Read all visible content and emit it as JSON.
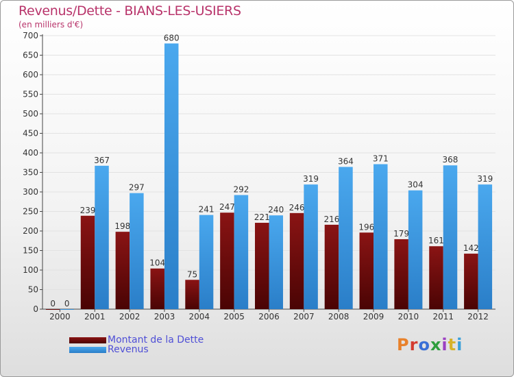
{
  "chart_data": {
    "type": "bar",
    "title": "Revenus/Dette - BIANS-LES-USIERS",
    "subtitle": "(en milliers d'€)",
    "categories": [
      "2000",
      "2001",
      "2002",
      "2003",
      "2004",
      "2005",
      "2006",
      "2007",
      "2008",
      "2009",
      "2010",
      "2011",
      "2012"
    ],
    "series": [
      {
        "name": "Montant de la Dette",
        "color": "#7a0a0a",
        "values": [
          0,
          239,
          198,
          104,
          75,
          247,
          221,
          246,
          216,
          196,
          179,
          161,
          142
        ]
      },
      {
        "name": "Revenus",
        "color": "#3f9de6",
        "values": [
          0,
          367,
          297,
          680,
          241,
          292,
          240,
          319,
          364,
          371,
          304,
          368,
          319
        ]
      }
    ],
    "ylim": [
      0,
      700
    ],
    "yticks": [
      0,
      50,
      100,
      150,
      200,
      250,
      300,
      350,
      400,
      450,
      500,
      550,
      600,
      650,
      700
    ],
    "grid": true,
    "legend_position": "bottom-left"
  },
  "logo": {
    "text": "Proxiti",
    "colors": [
      "#e8812b",
      "#d43b2f",
      "#3a6fd6",
      "#2e9e3e",
      "#9b3fc2",
      "#d6b22b",
      "#3aa0d8"
    ]
  }
}
